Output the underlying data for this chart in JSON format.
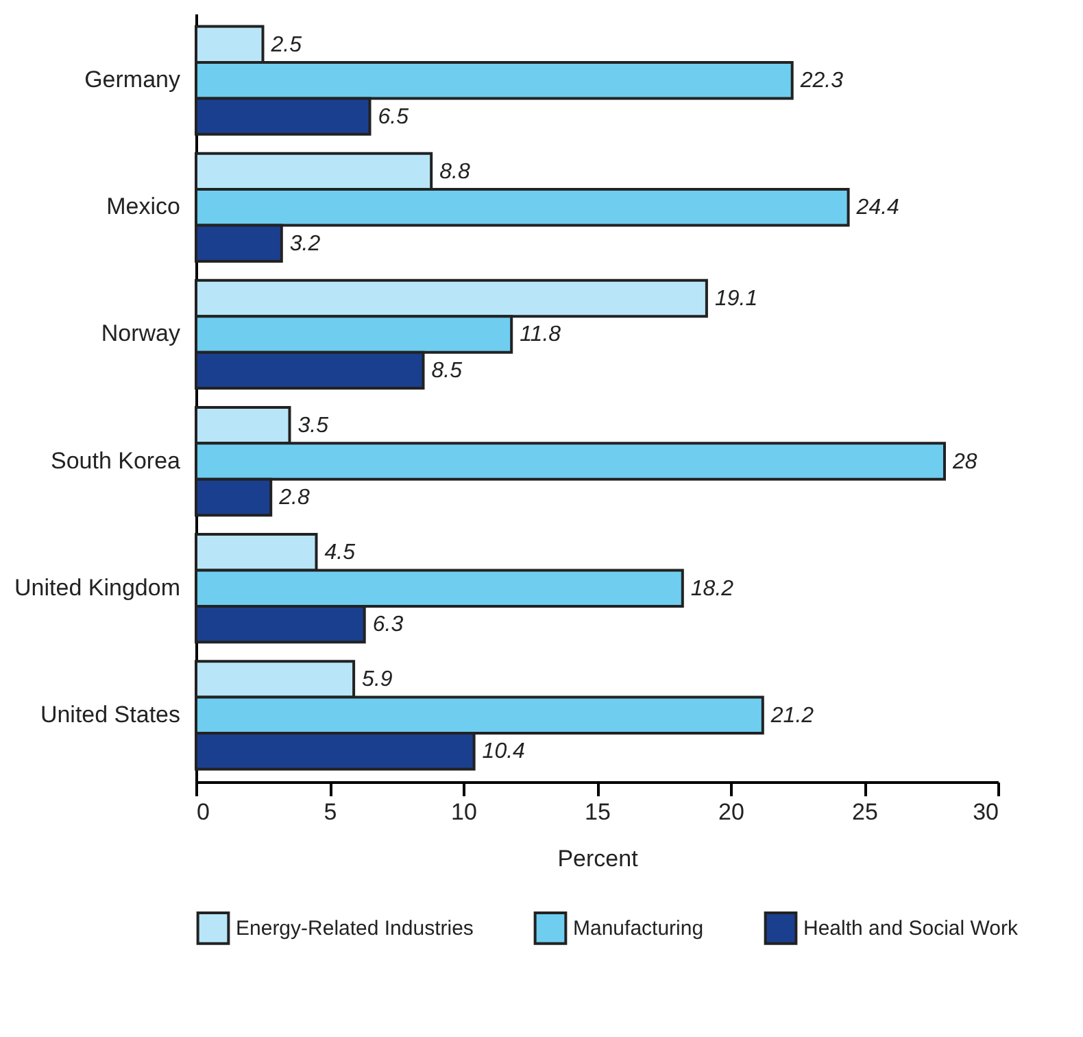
{
  "chart_data": {
    "type": "bar",
    "orientation": "horizontal",
    "xlabel": "Percent",
    "categories": [
      "Germany",
      "Mexico",
      "Norway",
      "South Korea",
      "United Kingdom",
      "United States"
    ],
    "series": [
      {
        "name": "Energy-Related Industries",
        "color": "#b8e6f8",
        "values": [
          2.5,
          8.8,
          19.1,
          3.5,
          4.5,
          5.9
        ]
      },
      {
        "name": "Manufacturing",
        "color": "#6fcdf0",
        "values": [
          22.3,
          24.4,
          11.8,
          28,
          18.2,
          21.2
        ]
      },
      {
        "name": "Health and Social Work",
        "color": "#1b3f8f",
        "values": [
          6.5,
          3.2,
          8.5,
          2.8,
          6.3,
          10.4
        ]
      }
    ],
    "xlim": [
      0,
      30
    ],
    "xticks": [
      0,
      5,
      10,
      15,
      20,
      25,
      30
    ],
    "grid": false,
    "legend": "bottom",
    "data_labels": true
  }
}
